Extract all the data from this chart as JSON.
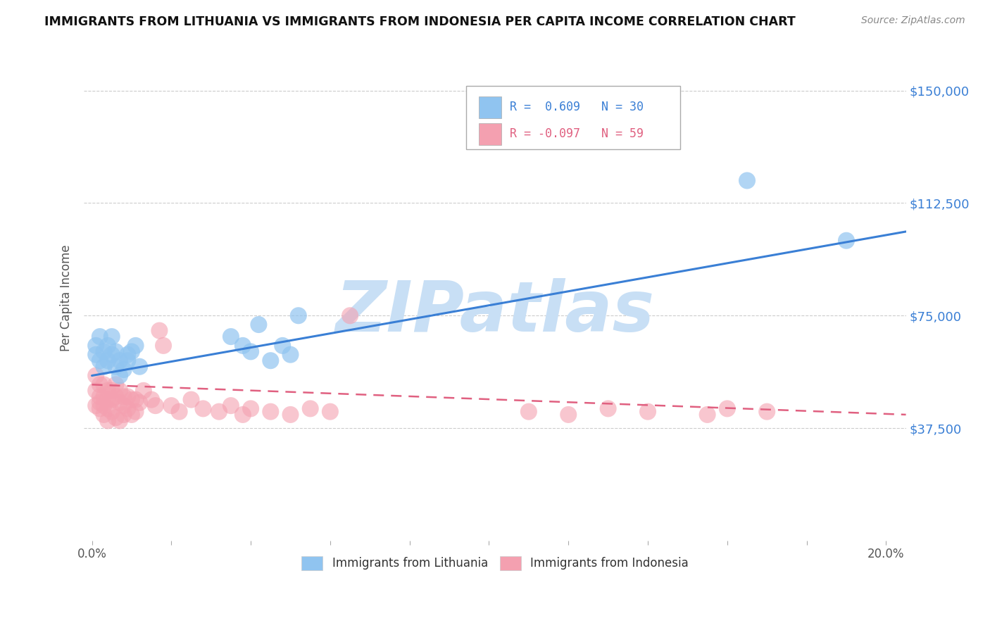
{
  "title": "IMMIGRANTS FROM LITHUANIA VS IMMIGRANTS FROM INDONESIA PER CAPITA INCOME CORRELATION CHART",
  "source": "Source: ZipAtlas.com",
  "ylabel": "Per Capita Income",
  "ytick_labels": [
    "$37,500",
    "$75,000",
    "$112,500",
    "$150,000"
  ],
  "ytick_values": [
    37500,
    75000,
    112500,
    150000
  ],
  "ymin": 0,
  "ymax": 162000,
  "xmin": -0.002,
  "xmax": 0.205,
  "legend_r1": "R =  0.609",
  "legend_n1": "N = 30",
  "legend_r2": "R = -0.097",
  "legend_n2": "N = 59",
  "color_blue": "#90c4f0",
  "color_pink": "#f4a0b0",
  "color_blue_line": "#3a7fd5",
  "color_pink_line": "#e06080",
  "color_axis_labels": "#3a7fd5",
  "watermark_text": "ZIPatlas",
  "watermark_color": "#c8dff5",
  "background_color": "#ffffff",
  "grid_color": "#cccccc",
  "lith_x": [
    0.001,
    0.001,
    0.002,
    0.002,
    0.003,
    0.003,
    0.004,
    0.004,
    0.005,
    0.005,
    0.006,
    0.006,
    0.007,
    0.007,
    0.008,
    0.009,
    0.009,
    0.01,
    0.011,
    0.012,
    0.035,
    0.038,
    0.04,
    0.042,
    0.045,
    0.048,
    0.05,
    0.052,
    0.165,
    0.19
  ],
  "lith_y": [
    62000,
    65000,
    60000,
    68000,
    63000,
    58000,
    65000,
    60000,
    62000,
    68000,
    58000,
    63000,
    60000,
    55000,
    57000,
    60000,
    62000,
    63000,
    65000,
    58000,
    68000,
    65000,
    63000,
    72000,
    60000,
    65000,
    62000,
    75000,
    120000,
    100000
  ],
  "indo_x": [
    0.001,
    0.001,
    0.001,
    0.002,
    0.002,
    0.002,
    0.002,
    0.003,
    0.003,
    0.003,
    0.003,
    0.004,
    0.004,
    0.004,
    0.004,
    0.005,
    0.005,
    0.005,
    0.006,
    0.006,
    0.006,
    0.007,
    0.007,
    0.007,
    0.008,
    0.008,
    0.008,
    0.009,
    0.009,
    0.01,
    0.01,
    0.011,
    0.011,
    0.012,
    0.013,
    0.015,
    0.016,
    0.017,
    0.018,
    0.02,
    0.022,
    0.025,
    0.028,
    0.032,
    0.035,
    0.038,
    0.04,
    0.045,
    0.05,
    0.055,
    0.06,
    0.065,
    0.11,
    0.12,
    0.13,
    0.14,
    0.155,
    0.16,
    0.17
  ],
  "indo_y": [
    55000,
    50000,
    45000,
    52000,
    48000,
    46000,
    44000,
    52000,
    48000,
    45000,
    42000,
    50000,
    47000,
    44000,
    40000,
    50000,
    47000,
    43000,
    52000,
    48000,
    41000,
    50000,
    46000,
    40000,
    48000,
    45000,
    42000,
    48000,
    44000,
    47000,
    42000,
    47000,
    43000,
    46000,
    50000,
    47000,
    45000,
    70000,
    65000,
    45000,
    43000,
    47000,
    44000,
    43000,
    45000,
    42000,
    44000,
    43000,
    42000,
    44000,
    43000,
    75000,
    43000,
    42000,
    44000,
    43000,
    42000,
    44000,
    43000
  ]
}
